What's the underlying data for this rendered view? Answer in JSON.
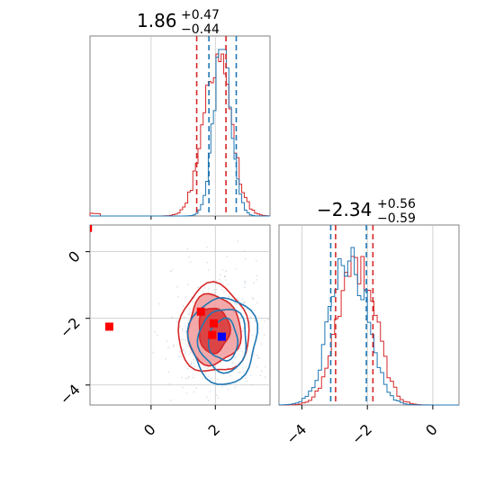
{
  "colors": {
    "red": "#d62728",
    "blue": "#1f77b4",
    "grid": "#c8c8c8",
    "frame": "#808080"
  },
  "chart_data": [
    {
      "type": "histogram",
      "panel": "top-left marginal",
      "title": {
        "value": "1.86",
        "plus": "+0.47",
        "minus": "−0.44"
      },
      "xlim": [
        -1.9,
        3.7
      ],
      "grid": true,
      "quantile_lines": {
        "red": [
          1.42,
          2.33
        ],
        "blue": [
          1.8,
          2.65
        ]
      },
      "red_series": {
        "peak": 2.05,
        "sd": 0.43,
        "tail_low": -1.9,
        "tail_weight": 0.015
      },
      "blue_series": {
        "peak": 2.22,
        "sd": 0.28
      }
    },
    {
      "type": "histogram",
      "panel": "bottom-right marginal",
      "title": {
        "value": "−2.34",
        "plus": "+0.56",
        "minus": "−0.59"
      },
      "xlim": [
        -4.7,
        0.8
      ],
      "grid": true,
      "xticks": [
        "−4",
        "−2",
        "0"
      ],
      "quantile_lines": {
        "red": [
          -2.97,
          -1.83
        ],
        "blue": [
          -3.12,
          -2.03
        ]
      },
      "red_series": {
        "peak": -2.32,
        "sd": 0.55
      },
      "blue_series": {
        "peak": -2.55,
        "sd": 0.55
      }
    },
    {
      "type": "contour",
      "panel": "bottom-left 2D",
      "xlim": [
        -1.9,
        3.7
      ],
      "ylim": [
        -4.6,
        0.8
      ],
      "grid": true,
      "xticks": [
        "0",
        "2"
      ],
      "yticks": [
        "0",
        "−2",
        "−4"
      ],
      "red_contours": [
        {
          "cx": 1.95,
          "cy": -2.35,
          "rx": 0.48,
          "ry": 0.68,
          "fill": true
        },
        {
          "cx": 1.95,
          "cy": -2.35,
          "rx": 0.82,
          "ry": 1.05,
          "fill": true
        },
        {
          "cx": 1.95,
          "cy": -2.35,
          "rx": 1.1,
          "ry": 1.32,
          "fill": false
        }
      ],
      "blue_contours": [
        {
          "cx": 2.25,
          "cy": -2.65,
          "rx": 0.45,
          "ry": 0.62
        },
        {
          "cx": 2.25,
          "cy": -2.65,
          "rx": 0.75,
          "ry": 0.95
        },
        {
          "cx": 2.25,
          "cy": -2.65,
          "rx": 1.05,
          "ry": 1.3
        }
      ],
      "markers": [
        {
          "color": "red",
          "x": -1.3,
          "y": -2.25
        },
        {
          "color": "red",
          "x": 1.95,
          "y": -2.15
        },
        {
          "color": "red",
          "x": 1.55,
          "y": -1.8
        },
        {
          "color": "red",
          "x": 1.9,
          "y": -2.5
        },
        {
          "color": "blue",
          "x": 2.2,
          "y": -2.55
        }
      ],
      "edge_points": [
        {
          "color": "red",
          "x": -1.88,
          "y": 0.7
        }
      ]
    }
  ]
}
